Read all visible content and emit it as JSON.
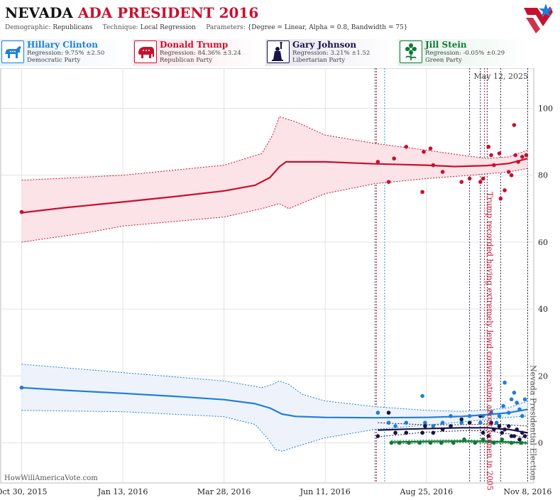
{
  "header": {
    "title_state": "NEVADA",
    "title_rest": "ADA PRESIDENT 2016",
    "demographic_label": "Demographic:",
    "demographic_value": "Republicans",
    "technique_label": "Technique:",
    "technique_value": "Local Regression",
    "parameters_label": "Parameters:",
    "parameters_value": "{Degree = Linear, Alpha = 0.8, Bandwidth = 75}"
  },
  "candidates": [
    {
      "name": "Hillary Clinton",
      "regression": "Regression: 9.75% ±2.50",
      "party": "Democratic Party",
      "color": "#1e7fd8",
      "icon": "donkey-icon"
    },
    {
      "name": "Donald Trump",
      "regression": "Regression: 84.36% ±3.24",
      "party": "Republican Party",
      "color": "#c8102e",
      "icon": "elephant-icon"
    },
    {
      "name": "Gary Johnson",
      "regression": "Regression: 3.21% ±1.52",
      "party": "Libertarian Party",
      "color": "#1a1446",
      "icon": "statue-of-liberty-icon"
    },
    {
      "name": "Jill Stein",
      "regression": "Regression: -0.05% ±0.29",
      "party": "Green Party",
      "color": "#0e7a36",
      "icon": "flower-icon"
    }
  ],
  "date_stamp": "May 12, 2025",
  "credit": "HowWillAmericaVote.com",
  "chart_data": {
    "type": "line",
    "x_tick_labels": [
      "Oct 30, 2015",
      "Jan 13, 2016",
      "Mar 28, 2016",
      "Jun 11, 2016",
      "Aug 25, 2016",
      "Nov 8, 2016"
    ],
    "xlim": [
      "2015-10-15",
      "2016-11-12"
    ],
    "ylim": [
      -12,
      112
    ],
    "y_ticks": [
      0,
      20,
      40,
      60,
      80,
      100
    ],
    "grid": true,
    "vlines": [
      {
        "date": "2016-07-18",
        "color": "#1a1446"
      },
      {
        "date": "2016-07-19",
        "color": "#c8102e"
      },
      {
        "date": "2016-07-25",
        "color": "#1e7fd8"
      },
      {
        "date": "2016-09-26",
        "color": "#1a1446"
      },
      {
        "date": "2016-10-04",
        "color": "#1a1446"
      },
      {
        "date": "2016-10-07",
        "color": "#c8102e"
      },
      {
        "date": "2016-10-09",
        "color": "#1a1446"
      },
      {
        "date": "2016-10-19",
        "color": "#1a1446"
      },
      {
        "date": "2016-11-08",
        "color": "#1a1446"
      }
    ],
    "annotations": [
      {
        "text": "Trump recorded having extremely lewd conversation about women in 2005",
        "date": "2016-10-07",
        "color": "#c8102e"
      },
      {
        "text": "Nevada Presidential Election",
        "date": "2016-11-08",
        "color": "#555555"
      }
    ],
    "series": [
      {
        "name": "Donald Trump",
        "color": "#c8102e",
        "band_fill": "#fbe3e8",
        "line": [
          [
            "2015-10-30",
            68.8
          ],
          [
            "2015-12-01",
            70.3
          ],
          [
            "2016-01-13",
            72.0
          ],
          [
            "2016-02-20",
            73.6
          ],
          [
            "2016-03-28",
            75.3
          ],
          [
            "2016-04-20",
            77.0
          ],
          [
            "2016-05-01",
            79.3
          ],
          [
            "2016-05-08",
            82.5
          ],
          [
            "2016-05-13",
            84.0
          ],
          [
            "2016-06-11",
            84.0
          ],
          [
            "2016-07-18",
            83.4
          ],
          [
            "2016-08-25",
            83.0
          ],
          [
            "2016-09-15",
            82.6
          ],
          [
            "2016-10-09",
            82.9
          ],
          [
            "2016-10-25",
            83.5
          ],
          [
            "2016-11-08",
            85.0
          ]
        ],
        "upper": [
          [
            "2015-10-30",
            78.5
          ],
          [
            "2016-01-13",
            80.0
          ],
          [
            "2016-03-28",
            83.0
          ],
          [
            "2016-04-25",
            86.5
          ],
          [
            "2016-05-03",
            92.0
          ],
          [
            "2016-05-08",
            97.5
          ],
          [
            "2016-05-20",
            96.0
          ],
          [
            "2016-06-11",
            92.0
          ],
          [
            "2016-07-18",
            89.5
          ],
          [
            "2016-08-25",
            87.5
          ],
          [
            "2016-09-20",
            86.0
          ],
          [
            "2016-10-09",
            85.0
          ],
          [
            "2016-10-25",
            85.5
          ],
          [
            "2016-11-08",
            87.5
          ]
        ],
        "lower": [
          [
            "2015-10-30",
            60.0
          ],
          [
            "2015-12-20",
            63.0
          ],
          [
            "2016-01-13",
            64.8
          ],
          [
            "2016-03-28",
            67.5
          ],
          [
            "2016-04-25",
            70.0
          ],
          [
            "2016-05-08",
            71.5
          ],
          [
            "2016-05-15",
            70.0
          ],
          [
            "2016-06-11",
            74.5
          ],
          [
            "2016-07-18",
            77.5
          ],
          [
            "2016-08-25",
            79.0
          ],
          [
            "2016-09-20",
            79.8
          ],
          [
            "2016-10-09",
            80.4
          ],
          [
            "2016-10-25",
            81.0
          ],
          [
            "2016-11-08",
            82.0
          ]
        ],
        "points": [
          [
            "2015-10-30",
            69
          ],
          [
            "2016-07-20",
            84
          ],
          [
            "2016-07-28",
            78
          ],
          [
            "2016-08-01",
            85
          ],
          [
            "2016-08-10",
            88.5
          ],
          [
            "2016-08-22",
            75
          ],
          [
            "2016-08-23",
            87
          ],
          [
            "2016-08-28",
            88
          ],
          [
            "2016-08-30",
            83
          ],
          [
            "2016-09-06",
            81
          ],
          [
            "2016-09-20",
            78
          ],
          [
            "2016-09-26",
            79
          ],
          [
            "2016-10-04",
            78
          ],
          [
            "2016-10-06",
            79
          ],
          [
            "2016-10-10",
            88.5
          ],
          [
            "2016-10-12",
            86
          ],
          [
            "2016-10-14",
            83
          ],
          [
            "2016-10-18",
            86.5
          ],
          [
            "2016-10-19",
            73
          ],
          [
            "2016-10-22",
            75.5
          ],
          [
            "2016-10-25",
            81
          ],
          [
            "2016-10-27",
            80
          ],
          [
            "2016-10-29",
            95
          ],
          [
            "2016-10-30",
            86
          ],
          [
            "2016-11-01",
            84
          ],
          [
            "2016-11-04",
            85.5
          ],
          [
            "2016-11-07",
            86
          ]
        ]
      },
      {
        "name": "Hillary Clinton",
        "color": "#1e7fd8",
        "band_fill": "#eef3fb",
        "line": [
          [
            "2015-10-30",
            16.5
          ],
          [
            "2015-12-01",
            15.7
          ],
          [
            "2016-01-13",
            14.8
          ],
          [
            "2016-02-20",
            13.9
          ],
          [
            "2016-03-28",
            12.9
          ],
          [
            "2016-04-20",
            11.7
          ],
          [
            "2016-05-01",
            10.4
          ],
          [
            "2016-05-10",
            8.6
          ],
          [
            "2016-05-20",
            7.9
          ],
          [
            "2016-06-11",
            7.6
          ],
          [
            "2016-07-18",
            7.5
          ],
          [
            "2016-08-25",
            7.6
          ],
          [
            "2016-09-20",
            7.9
          ],
          [
            "2016-10-09",
            8.4
          ],
          [
            "2016-10-25",
            9.0
          ],
          [
            "2016-11-08",
            10.0
          ]
        ],
        "upper": [
          [
            "2015-10-30",
            23.5
          ],
          [
            "2016-01-13",
            21.0
          ],
          [
            "2016-03-28",
            18.5
          ],
          [
            "2016-04-25",
            16.5
          ],
          [
            "2016-05-03",
            17.5
          ],
          [
            "2016-05-08",
            18.5
          ],
          [
            "2016-05-15",
            17.5
          ],
          [
            "2016-05-25",
            14.5
          ],
          [
            "2016-06-11",
            12.5
          ],
          [
            "2016-07-18",
            10.8
          ],
          [
            "2016-08-25",
            9.7
          ],
          [
            "2016-09-20",
            9.4
          ],
          [
            "2016-10-09",
            9.8
          ],
          [
            "2016-10-25",
            10.5
          ],
          [
            "2016-11-08",
            12.5
          ]
        ],
        "lower": [
          [
            "2015-10-30",
            9.7
          ],
          [
            "2016-01-13",
            9.3
          ],
          [
            "2016-03-28",
            7.8
          ],
          [
            "2016-04-20",
            5.5
          ],
          [
            "2016-04-30",
            1.0
          ],
          [
            "2016-05-05",
            -2.0
          ],
          [
            "2016-05-10",
            -2.5
          ],
          [
            "2016-05-20",
            -1.2
          ],
          [
            "2016-06-11",
            1.5
          ],
          [
            "2016-07-18",
            4.0
          ],
          [
            "2016-08-25",
            5.3
          ],
          [
            "2016-09-20",
            6.2
          ],
          [
            "2016-10-09",
            7.0
          ],
          [
            "2016-10-25",
            7.6
          ],
          [
            "2016-11-08",
            8.0
          ]
        ],
        "points": [
          [
            "2015-10-30",
            16.5
          ],
          [
            "2016-07-20",
            9
          ],
          [
            "2016-07-28",
            6
          ],
          [
            "2016-08-02",
            5
          ],
          [
            "2016-08-10",
            6
          ],
          [
            "2016-08-22",
            14
          ],
          [
            "2016-08-24",
            6
          ],
          [
            "2016-08-30",
            5
          ],
          [
            "2016-09-06",
            6
          ],
          [
            "2016-09-12",
            8
          ],
          [
            "2016-09-20",
            6
          ],
          [
            "2016-09-26",
            8
          ],
          [
            "2016-10-04",
            6
          ],
          [
            "2016-10-06",
            8
          ],
          [
            "2016-10-12",
            9
          ],
          [
            "2016-10-16",
            6
          ],
          [
            "2016-10-18",
            8
          ],
          [
            "2016-10-21",
            11
          ],
          [
            "2016-10-22",
            18
          ],
          [
            "2016-10-25",
            9
          ],
          [
            "2016-10-27",
            13
          ],
          [
            "2016-10-29",
            15
          ],
          [
            "2016-10-31",
            12
          ],
          [
            "2016-11-02",
            10
          ],
          [
            "2016-11-04",
            8
          ],
          [
            "2016-11-06",
            13
          ]
        ]
      },
      {
        "name": "Gary Johnson",
        "color": "#1a1446",
        "band_fill": "none",
        "line": [
          [
            "2016-07-20",
            3.8
          ],
          [
            "2016-08-10",
            4.1
          ],
          [
            "2016-09-01",
            4.3
          ],
          [
            "2016-09-20",
            4.5
          ],
          [
            "2016-10-09",
            4.5
          ],
          [
            "2016-10-25",
            4.0
          ],
          [
            "2016-11-08",
            3.0
          ]
        ],
        "upper": [
          [
            "2016-07-20",
            6.0
          ],
          [
            "2016-08-25",
            5.4
          ],
          [
            "2016-09-20",
            5.4
          ],
          [
            "2016-10-09",
            5.6
          ],
          [
            "2016-10-25",
            5.4
          ],
          [
            "2016-11-08",
            5.0
          ]
        ],
        "lower": [
          [
            "2016-07-20",
            1.8
          ],
          [
            "2016-08-25",
            3.2
          ],
          [
            "2016-09-20",
            3.6
          ],
          [
            "2016-10-09",
            3.6
          ],
          [
            "2016-10-25",
            2.7
          ],
          [
            "2016-11-08",
            1.3
          ]
        ],
        "points": [
          [
            "2016-07-20",
            2
          ],
          [
            "2016-07-28",
            9
          ],
          [
            "2016-08-02",
            3
          ],
          [
            "2016-08-10",
            3
          ],
          [
            "2016-08-22",
            3
          ],
          [
            "2016-08-24",
            5
          ],
          [
            "2016-08-30",
            3
          ],
          [
            "2016-09-06",
            4
          ],
          [
            "2016-09-12",
            5
          ],
          [
            "2016-09-20",
            7
          ],
          [
            "2016-09-26",
            6
          ],
          [
            "2016-10-04",
            8
          ],
          [
            "2016-10-06",
            3
          ],
          [
            "2016-10-10",
            2
          ],
          [
            "2016-10-12",
            6
          ],
          [
            "2016-10-14",
            4
          ],
          [
            "2016-10-18",
            5
          ],
          [
            "2016-10-20",
            3
          ],
          [
            "2016-10-22",
            4
          ],
          [
            "2016-10-25",
            5
          ],
          [
            "2016-10-27",
            2
          ],
          [
            "2016-10-29",
            2
          ],
          [
            "2016-10-31",
            4
          ],
          [
            "2016-11-02",
            1
          ],
          [
            "2016-11-04",
            3
          ],
          [
            "2016-11-06",
            2
          ]
        ]
      },
      {
        "name": "Jill Stein",
        "color": "#0e7a36",
        "band_fill": "none",
        "line": [
          [
            "2016-07-30",
            0.2
          ],
          [
            "2016-08-25",
            0.4
          ],
          [
            "2016-09-20",
            0.5
          ],
          [
            "2016-10-09",
            0.4
          ],
          [
            "2016-10-25",
            0.2
          ],
          [
            "2016-11-08",
            -0.05
          ]
        ],
        "upper": [
          [
            "2016-07-30",
            0.7
          ],
          [
            "2016-09-20",
            0.9
          ],
          [
            "2016-11-08",
            0.3
          ]
        ],
        "lower": [
          [
            "2016-07-30",
            -0.3
          ],
          [
            "2016-09-20",
            0.1
          ],
          [
            "2016-11-08",
            -0.4
          ]
        ],
        "points": [
          [
            "2016-07-30",
            0
          ],
          [
            "2016-08-05",
            0
          ],
          [
            "2016-08-12",
            0
          ],
          [
            "2016-08-20",
            0
          ],
          [
            "2016-08-28",
            0
          ],
          [
            "2016-09-05",
            0
          ],
          [
            "2016-09-14",
            0
          ],
          [
            "2016-09-22",
            1
          ],
          [
            "2016-09-30",
            0
          ],
          [
            "2016-10-06",
            1
          ],
          [
            "2016-10-14",
            0
          ],
          [
            "2016-10-20",
            1
          ],
          [
            "2016-10-27",
            0
          ],
          [
            "2016-11-03",
            0
          ]
        ]
      }
    ]
  }
}
